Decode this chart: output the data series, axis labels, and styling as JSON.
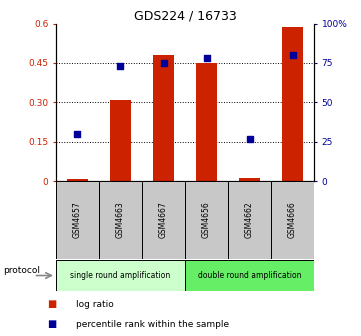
{
  "title": "GDS224 / 16733",
  "samples": [
    "GSM4657",
    "GSM4663",
    "GSM4667",
    "GSM4656",
    "GSM4662",
    "GSM4666"
  ],
  "log_ratio": [
    0.01,
    0.31,
    0.48,
    0.45,
    0.012,
    0.585
  ],
  "percentile": [
    30,
    73,
    75,
    78,
    27,
    80
  ],
  "ylim_left": [
    0,
    0.6
  ],
  "ylim_right": [
    0,
    100
  ],
  "yticks_left": [
    0,
    0.15,
    0.3,
    0.45,
    0.6
  ],
  "ytick_labels_left": [
    "0",
    "0.15",
    "0.30",
    "0.45",
    "0.6"
  ],
  "yticks_right": [
    0,
    25,
    50,
    75,
    100
  ],
  "ytick_labels_right": [
    "0",
    "25",
    "50",
    "75",
    "100%"
  ],
  "bar_color": "#CC2200",
  "dot_color": "#000099",
  "hgrid_values": [
    0.15,
    0.3,
    0.45
  ],
  "protocol_groups": [
    {
      "label": "single round amplification",
      "start": 0,
      "end": 3,
      "color": "#CCFFCC"
    },
    {
      "label": "double round amplification",
      "start": 3,
      "end": 6,
      "color": "#66EE66"
    }
  ],
  "legend_labels": [
    "log ratio",
    "percentile rank within the sample"
  ],
  "protocol_label": "protocol",
  "bg_color": "#FFFFFF",
  "plot_bg": "#FFFFFF",
  "sample_box_color": "#C8C8C8"
}
